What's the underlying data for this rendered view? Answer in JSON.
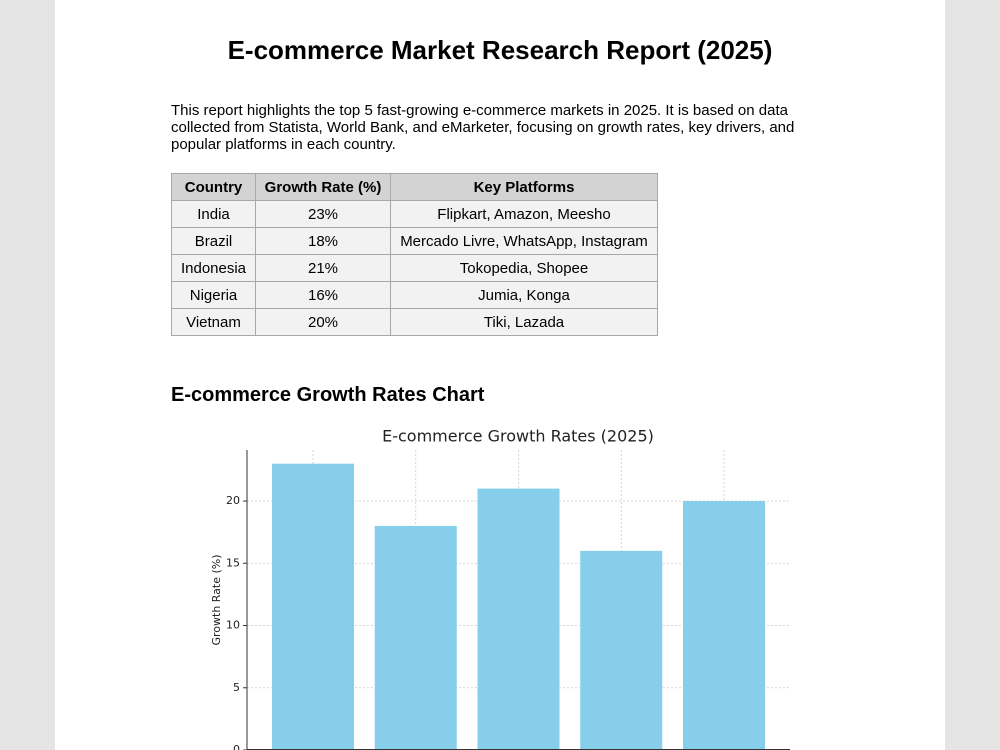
{
  "header": {
    "title": "E-commerce Market Research Report (2025)"
  },
  "intro": "This report highlights the top 5 fast-growing e-commerce markets in 2025. It is based on data collected from Statista, World Bank, and eMarketer, focusing on growth rates, key drivers, and popular platforms in each country.",
  "table": {
    "header": [
      "Country",
      "Growth Rate (%)",
      "Key Platforms"
    ],
    "rows": [
      [
        "India",
        "23%",
        "Flipkart, Amazon, Meesho"
      ],
      [
        "Brazil",
        "18%",
        "Mercado Livre, WhatsApp, Instagram"
      ],
      [
        "Indonesia",
        "21%",
        "Tokopedia, Shopee"
      ],
      [
        "Nigeria",
        "16%",
        "Jumia, Konga"
      ],
      [
        "Vietnam",
        "20%",
        "Tiki, Lazada"
      ]
    ]
  },
  "section": {
    "title": "E-commerce Growth Rates Chart"
  },
  "chart_data": {
    "type": "bar",
    "title": "E-commerce Growth Rates (2025)",
    "y_label": "Growth Rate (%)",
    "values": [
      23,
      18,
      21,
      16,
      20
    ],
    "color": "#87ceeb",
    "ylim": [
      0,
      24.1
    ],
    "yticks": [
      0,
      5,
      10,
      15,
      20
    ],
    "grid": true
  }
}
